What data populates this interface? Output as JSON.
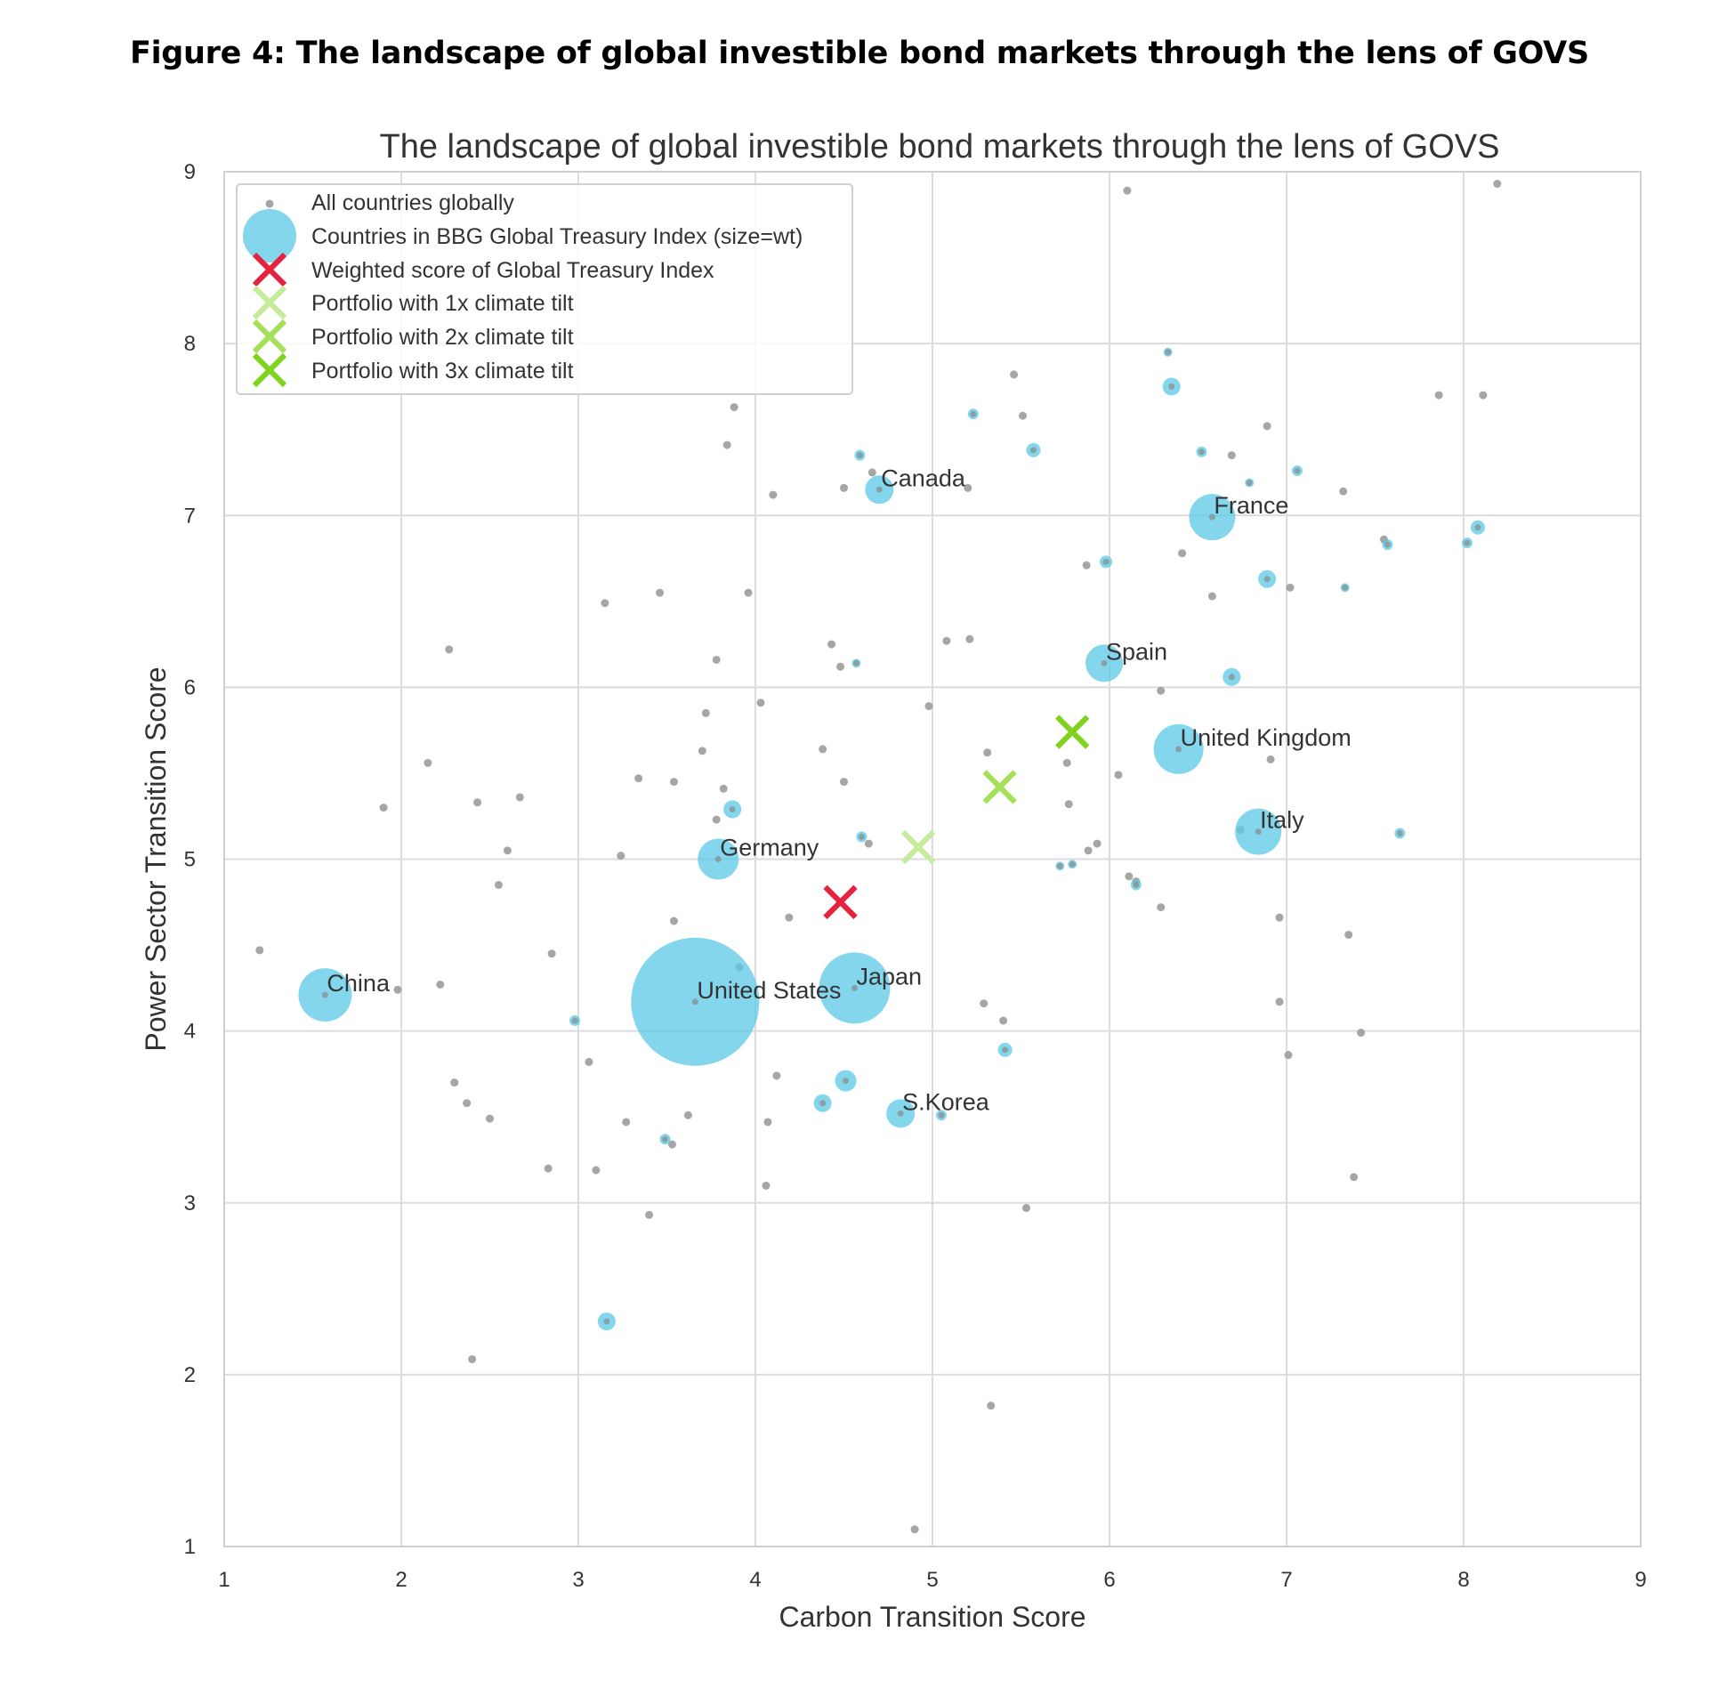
{
  "figure_heading": "Figure 4: The landscape of global investible bond markets through the lens of GOVS",
  "chart_data": {
    "type": "scatter",
    "title": "The landscape of global investible bond markets through the lens of GOVS",
    "xlabel": "Carbon Transition Score",
    "ylabel": "Power Sector Transition Score",
    "xlim": [
      1,
      9
    ],
    "ylim": [
      1,
      9
    ],
    "xticks": [
      1,
      2,
      3,
      4,
      5,
      6,
      7,
      8,
      9
    ],
    "yticks": [
      1,
      2,
      3,
      4,
      5,
      6,
      7,
      8,
      9
    ],
    "grid": true,
    "legend_position": "top-left",
    "colors": {
      "all_countries": "#a6a6a6",
      "index_countries": "#5bc8e6",
      "weighted_score": "#e5233d",
      "tilt_1x": "#c5ec9a",
      "tilt_2x": "#a6e05a",
      "tilt_3x": "#7fd31e"
    },
    "legend": [
      {
        "label": "All countries globally",
        "marker": "dot"
      },
      {
        "label": "Countries in BBG Global Treasury Index (size=wt)",
        "marker": "circle"
      },
      {
        "label": "Weighted score of Global Treasury Index",
        "marker": "x-red"
      },
      {
        "label": "Portfolio with 1x climate tilt",
        "marker": "x-1x"
      },
      {
        "label": "Portfolio with 2x climate tilt",
        "marker": "x-2x"
      },
      {
        "label": "Portfolio with 3x climate tilt",
        "marker": "x-3x"
      }
    ],
    "series": [
      {
        "name": "All countries globally",
        "points": [
          [
            1.2,
            4.47
          ],
          [
            1.9,
            5.3
          ],
          [
            1.98,
            4.24
          ],
          [
            2.15,
            5.56
          ],
          [
            2.22,
            4.27
          ],
          [
            2.27,
            6.22
          ],
          [
            2.3,
            3.7
          ],
          [
            2.37,
            3.58
          ],
          [
            2.4,
            2.09
          ],
          [
            2.43,
            5.33
          ],
          [
            2.5,
            3.49
          ],
          [
            2.55,
            4.85
          ],
          [
            2.6,
            5.05
          ],
          [
            2.67,
            5.36
          ],
          [
            2.83,
            3.2
          ],
          [
            2.85,
            4.45
          ],
          [
            3.06,
            3.82
          ],
          [
            3.1,
            3.19
          ],
          [
            3.15,
            6.49
          ],
          [
            3.24,
            5.02
          ],
          [
            3.27,
            3.47
          ],
          [
            3.34,
            5.47
          ],
          [
            3.4,
            2.93
          ],
          [
            3.46,
            6.55
          ],
          [
            3.53,
            3.34
          ],
          [
            3.54,
            5.45
          ],
          [
            3.54,
            4.64
          ],
          [
            3.62,
            3.51
          ],
          [
            3.7,
            5.63
          ],
          [
            3.72,
            5.85
          ],
          [
            3.78,
            6.16
          ],
          [
            3.78,
            5.23
          ],
          [
            3.82,
            5.41
          ],
          [
            3.84,
            7.41
          ],
          [
            3.88,
            7.63
          ],
          [
            3.91,
            4.37
          ],
          [
            3.96,
            6.55
          ],
          [
            4.03,
            5.91
          ],
          [
            4.06,
            3.1
          ],
          [
            4.07,
            3.47
          ],
          [
            4.1,
            7.12
          ],
          [
            4.12,
            3.74
          ],
          [
            4.19,
            4.66
          ],
          [
            4.38,
            5.64
          ],
          [
            4.43,
            6.25
          ],
          [
            4.48,
            6.12
          ],
          [
            4.5,
            7.16
          ],
          [
            4.5,
            5.45
          ],
          [
            4.64,
            5.09
          ],
          [
            4.66,
            7.25
          ],
          [
            4.9,
            1.1
          ],
          [
            4.98,
            5.89
          ],
          [
            5.08,
            6.27
          ],
          [
            5.2,
            7.16
          ],
          [
            5.21,
            6.28
          ],
          [
            5.29,
            4.16
          ],
          [
            5.31,
            5.62
          ],
          [
            5.33,
            1.82
          ],
          [
            5.4,
            4.06
          ],
          [
            5.46,
            7.82
          ],
          [
            5.51,
            7.58
          ],
          [
            5.53,
            2.97
          ],
          [
            5.76,
            5.56
          ],
          [
            5.77,
            5.32
          ],
          [
            5.87,
            6.71
          ],
          [
            5.88,
            5.05
          ],
          [
            5.93,
            5.09
          ],
          [
            6.05,
            5.49
          ],
          [
            6.1,
            8.89
          ],
          [
            6.11,
            4.9
          ],
          [
            6.15,
            4.87
          ],
          [
            6.29,
            5.98
          ],
          [
            6.29,
            4.72
          ],
          [
            6.41,
            6.78
          ],
          [
            6.58,
            6.53
          ],
          [
            6.69,
            7.35
          ],
          [
            6.74,
            5.17
          ],
          [
            6.89,
            7.52
          ],
          [
            6.91,
            5.58
          ],
          [
            6.96,
            4.66
          ],
          [
            6.96,
            4.17
          ],
          [
            7.01,
            3.86
          ],
          [
            7.02,
            6.58
          ],
          [
            7.32,
            7.14
          ],
          [
            7.35,
            4.56
          ],
          [
            7.38,
            3.15
          ],
          [
            7.42,
            3.99
          ],
          [
            7.55,
            6.86
          ],
          [
            7.86,
            7.7
          ],
          [
            8.11,
            7.7
          ],
          [
            8.19,
            8.93
          ]
        ]
      },
      {
        "name": "Countries in BBG Global Treasury Index (size=wt)",
        "points": [
          [
            1.57,
            4.21,
            "China",
            30
          ],
          [
            3.66,
            4.17,
            "United States",
            72
          ],
          [
            4.56,
            4.25,
            "Japan",
            40
          ],
          [
            3.79,
            5.0,
            "Germany",
            23
          ],
          [
            4.7,
            7.15,
            "Canada",
            16
          ],
          [
            6.58,
            6.99,
            "France",
            26
          ],
          [
            5.97,
            6.14,
            "Spain",
            21
          ],
          [
            6.39,
            5.64,
            "United Kingdom",
            28
          ],
          [
            6.84,
            5.16,
            "Italy",
            26
          ],
          [
            4.82,
            3.52,
            "S.Korea",
            16
          ],
          [
            2.98,
            4.06,
            "",
            6
          ],
          [
            3.16,
            2.31,
            "",
            10
          ],
          [
            3.49,
            3.37,
            "",
            6
          ],
          [
            3.87,
            5.29,
            "",
            10
          ],
          [
            4.38,
            3.58,
            "",
            10
          ],
          [
            4.51,
            3.71,
            "",
            12
          ],
          [
            4.57,
            6.14,
            "",
            5
          ],
          [
            4.59,
            7.35,
            "",
            6
          ],
          [
            4.6,
            5.13,
            "",
            6
          ],
          [
            5.05,
            3.51,
            "",
            6
          ],
          [
            5.23,
            7.59,
            "",
            6
          ],
          [
            5.41,
            3.89,
            "",
            8
          ],
          [
            5.57,
            7.38,
            "",
            8
          ],
          [
            5.72,
            4.96,
            "",
            5
          ],
          [
            5.79,
            4.97,
            "",
            5
          ],
          [
            5.98,
            6.73,
            "",
            7
          ],
          [
            6.15,
            4.85,
            "",
            6
          ],
          [
            6.33,
            7.95,
            "",
            5
          ],
          [
            6.35,
            7.75,
            "",
            10
          ],
          [
            6.52,
            7.37,
            "",
            6
          ],
          [
            6.69,
            6.06,
            "",
            10
          ],
          [
            6.79,
            7.19,
            "",
            5
          ],
          [
            6.89,
            6.63,
            "",
            10
          ],
          [
            7.06,
            7.26,
            "",
            6
          ],
          [
            7.33,
            6.58,
            "",
            5
          ],
          [
            7.57,
            6.83,
            "",
            6
          ],
          [
            7.64,
            5.15,
            "",
            6
          ],
          [
            8.02,
            6.84,
            "",
            6
          ],
          [
            8.08,
            6.93,
            "",
            8
          ]
        ]
      },
      {
        "name": "Weighted score of Global Treasury Index",
        "points": [
          [
            4.48,
            4.75
          ]
        ]
      },
      {
        "name": "Portfolio with 1x climate tilt",
        "points": [
          [
            4.92,
            5.07
          ]
        ]
      },
      {
        "name": "Portfolio with 2x climate tilt",
        "points": [
          [
            5.38,
            5.42
          ]
        ]
      },
      {
        "name": "Portfolio with 3x climate tilt",
        "points": [
          [
            5.79,
            5.74
          ]
        ]
      }
    ]
  }
}
